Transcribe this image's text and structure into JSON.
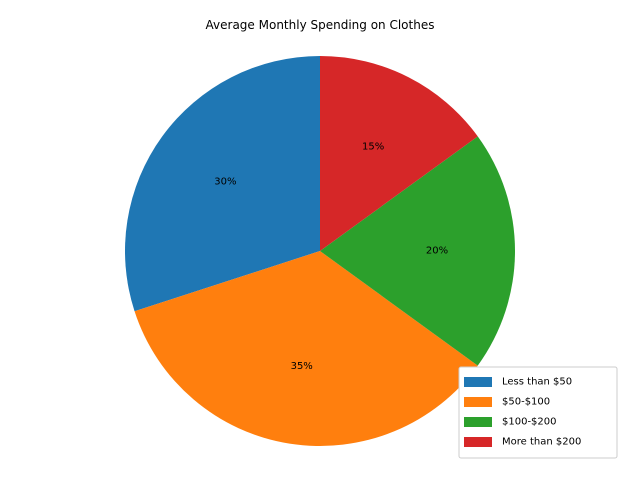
{
  "chart_data": {
    "type": "pie",
    "title": "Average Monthly Spending on Clothes",
    "start_angle_deg": 90,
    "direction": "counterclockwise",
    "legend_position": "lower-right",
    "slices": [
      {
        "label": "Less than $50",
        "value": 30,
        "pct_label": "30%",
        "color": "#1f77b4"
      },
      {
        "label": "$50-$100",
        "value": 35,
        "pct_label": "35%",
        "color": "#ff7f0e"
      },
      {
        "label": "$100-$200",
        "value": 20,
        "pct_label": "20%",
        "color": "#2ca02c"
      },
      {
        "label": "More than $200",
        "value": 15,
        "pct_label": "15%",
        "color": "#d62728"
      }
    ]
  }
}
